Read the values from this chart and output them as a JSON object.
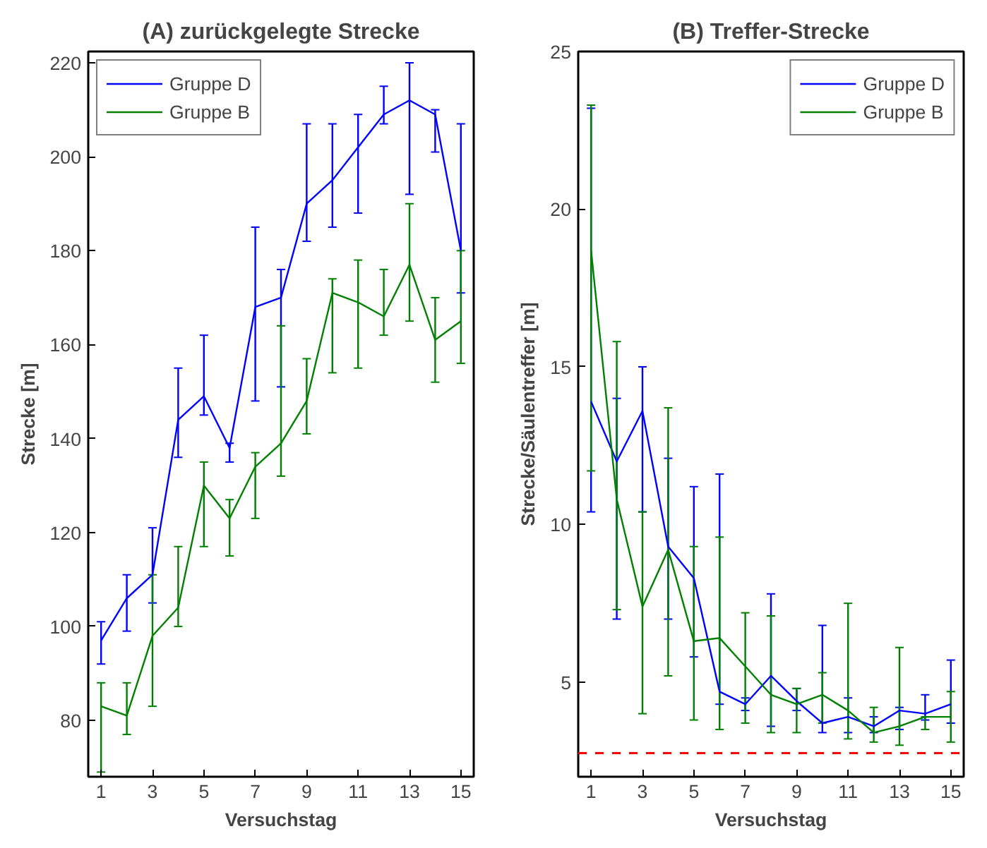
{
  "chart_data": [
    {
      "type": "line",
      "title": "(A) zurückgelegte Strecke",
      "xlabel": "Versuchstag",
      "ylabel": "Strecke [m]",
      "x": [
        1,
        2,
        3,
        4,
        5,
        6,
        7,
        8,
        9,
        10,
        11,
        12,
        13,
        14,
        15
      ],
      "xlim": [
        0.5,
        15.5
      ],
      "xticks": [
        1,
        3,
        5,
        7,
        9,
        11,
        13,
        15
      ],
      "ylim": [
        68,
        222.4
      ],
      "yticks": [
        80,
        100,
        120,
        140,
        160,
        180,
        200,
        220
      ],
      "grid": false,
      "legend": "top left",
      "marker": "none",
      "line_style": "solid",
      "series": [
        {
          "name": "Gruppe D",
          "color": "#0000ff",
          "values": [
            97,
            106,
            111,
            144,
            149,
            138,
            168,
            170,
            190,
            195,
            202,
            209,
            212,
            209,
            180
          ],
          "errors": [
            [
              92,
              101
            ],
            [
              99,
              111
            ],
            [
              105,
              121
            ],
            [
              136,
              155
            ],
            [
              145,
              162
            ],
            [
              135,
              139
            ],
            [
              148,
              185
            ],
            [
              151,
              176
            ],
            [
              182,
              207
            ],
            [
              185,
              207
            ],
            [
              188,
              209
            ],
            [
              207,
              215
            ],
            [
              192,
              220
            ],
            [
              201,
              210
            ],
            [
              171,
              207
            ]
          ]
        },
        {
          "name": "Gruppe B",
          "color": "#008000",
          "values": [
            83,
            81,
            98,
            104,
            130,
            123,
            134,
            139,
            148,
            171,
            169,
            166,
            177,
            161,
            165
          ],
          "errors": [
            [
              69,
              88
            ],
            [
              77,
              88
            ],
            [
              83,
              111
            ],
            [
              100,
              117
            ],
            [
              117,
              135
            ],
            [
              115,
              127
            ],
            [
              123,
              137
            ],
            [
              132,
              164
            ],
            [
              141,
              157
            ],
            [
              154,
              174
            ],
            [
              155,
              178
            ],
            [
              162,
              176
            ],
            [
              165,
              190
            ],
            [
              152,
              170
            ],
            [
              156,
              180
            ]
          ]
        }
      ]
    },
    {
      "type": "line",
      "title": "(B) Treffer-Strecke",
      "xlabel": "Versuchstag",
      "ylabel": "Strecke/Säulentreffer [m]",
      "x": [
        1,
        2,
        3,
        4,
        5,
        6,
        7,
        8,
        9,
        10,
        11,
        12,
        13,
        14,
        15
      ],
      "xlim": [
        0.5,
        15.5
      ],
      "xticks": [
        1,
        3,
        5,
        7,
        9,
        11,
        13,
        15
      ],
      "ylim": [
        2,
        25
      ],
      "yticks": [
        5,
        10,
        15,
        20,
        25
      ],
      "grid": false,
      "legend": "top right",
      "marker": "none",
      "line_style": "solid",
      "ref_lines": [
        {
          "axis": "y",
          "value": 2.75,
          "color": "#ff0000",
          "line_style": "dashed"
        }
      ],
      "series": [
        {
          "name": "Gruppe D",
          "color": "#0000ff",
          "values": [
            13.9,
            12.0,
            13.6,
            9.3,
            8.3,
            4.7,
            4.3,
            5.2,
            4.4,
            3.7,
            3.9,
            3.6,
            4.1,
            4.0,
            4.3
          ],
          "errors": [
            [
              10.4,
              23.2
            ],
            [
              7.0,
              14.0
            ],
            [
              10.4,
              15.0
            ],
            [
              7.0,
              12.1
            ],
            [
              5.8,
              11.2
            ],
            [
              4.3,
              11.6
            ],
            [
              4.1,
              4.5
            ],
            [
              3.6,
              7.8
            ],
            [
              4.1,
              4.8
            ],
            [
              3.4,
              6.8
            ],
            [
              3.4,
              4.5
            ],
            [
              3.4,
              3.9
            ],
            [
              3.5,
              4.2
            ],
            [
              3.8,
              4.6
            ],
            [
              3.7,
              5.7
            ]
          ]
        },
        {
          "name": "Gruppe B",
          "color": "#008000",
          "values": [
            18.7,
            10.8,
            7.4,
            9.2,
            6.3,
            6.4,
            5.5,
            4.6,
            4.3,
            4.6,
            4.1,
            3.4,
            3.6,
            3.9,
            3.9
          ],
          "errors": [
            [
              11.7,
              23.3
            ],
            [
              7.3,
              15.8
            ],
            [
              4.0,
              10.4
            ],
            [
              5.2,
              13.7
            ],
            [
              3.8,
              9.3
            ],
            [
              3.5,
              9.6
            ],
            [
              3.7,
              7.2
            ],
            [
              3.4,
              7.1
            ],
            [
              3.4,
              4.8
            ],
            [
              3.7,
              5.3
            ],
            [
              3.2,
              7.5
            ],
            [
              3.1,
              4.2
            ],
            [
              3.0,
              6.1
            ],
            [
              3.5,
              3.9
            ],
            [
              3.1,
              4.7
            ]
          ]
        }
      ]
    }
  ]
}
